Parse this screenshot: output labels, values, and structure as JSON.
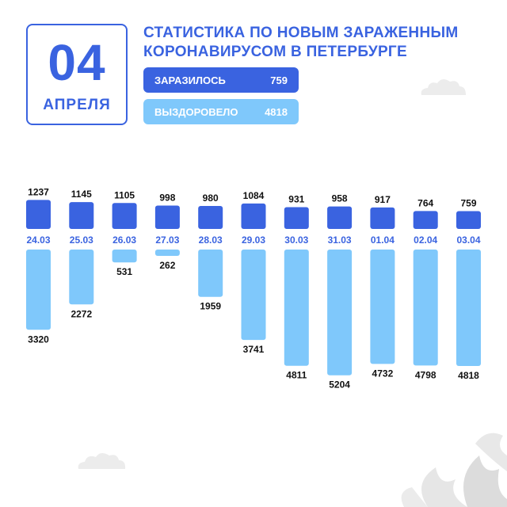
{
  "header": {
    "day": "04",
    "month": "АПРЕЛЯ",
    "title_line1": "СТАТИСТИКА ПО НОВЫМ ЗАРАЖЕННЫМ",
    "title_line2": "КОРОНАВИРУСОМ В ПЕТЕРБУРГЕ",
    "infected_label": "ЗАРАЗИЛОСЬ",
    "infected_value": "759",
    "recovered_label": "ВЫЗДОРОВЕЛО",
    "recovered_value": "4818"
  },
  "colors": {
    "infected": "#3a63e0",
    "recovered": "#7fc8fb",
    "date_text": "#3a63e0",
    "value_text": "#111111"
  },
  "chart_data": {
    "type": "bar",
    "categories": [
      "24.03",
      "25.03",
      "26.03",
      "27.03",
      "28.03",
      "29.03",
      "30.03",
      "31.03",
      "01.04",
      "02.04",
      "03.04"
    ],
    "series": [
      {
        "name": "ЗАРАЗИЛОСЬ",
        "values": [
          1237,
          1145,
          1105,
          998,
          980,
          1084,
          931,
          958,
          917,
          764,
          759
        ]
      },
      {
        "name": "ВЫЗДОРОВЕЛО",
        "values": [
          3320,
          2272,
          531,
          262,
          1959,
          3741,
          4811,
          5204,
          4732,
          4798,
          4818
        ]
      }
    ]
  }
}
